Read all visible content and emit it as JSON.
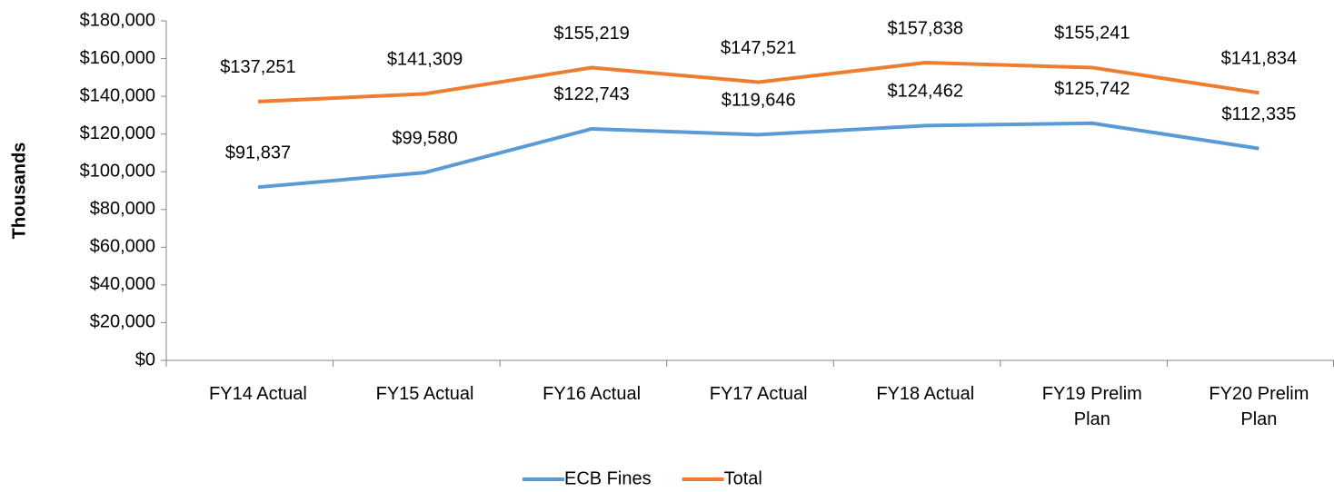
{
  "chart_data": {
    "type": "line",
    "y_label": "Thousands",
    "categories": [
      "FY14 Actual",
      "FY15 Actual",
      "FY16 Actual",
      "FY17 Actual",
      "FY18 Actual",
      "FY19 Prelim Plan",
      "FY20 Prelim Plan"
    ],
    "series": [
      {
        "name": "ECB Fines",
        "color": "#5b9bd5",
        "values": [
          91837,
          99580,
          122743,
          119646,
          124462,
          125742,
          112335
        ],
        "value_labels": [
          "$91,837",
          "$99,580",
          "$122,743",
          "$119,646",
          "$124,462",
          "$125,742",
          "$112,335"
        ]
      },
      {
        "name": "Total",
        "color": "#ed7d31",
        "values": [
          137251,
          141309,
          155219,
          147521,
          157838,
          155241,
          141834
        ],
        "value_labels": [
          "$137,251",
          "$141,309",
          "$155,219",
          "$147,521",
          "$157,838",
          "$155,241",
          "$141,834"
        ]
      }
    ],
    "ylim": [
      0,
      180000
    ],
    "yticks": [
      {
        "value": 0,
        "label": "$0"
      },
      {
        "value": 20000,
        "label": "$20,000"
      },
      {
        "value": 40000,
        "label": "$40,000"
      },
      {
        "value": 60000,
        "label": "$60,000"
      },
      {
        "value": 80000,
        "label": "$80,000"
      },
      {
        "value": 100000,
        "label": "$100,000"
      },
      {
        "value": 120000,
        "label": "$120,000"
      },
      {
        "value": 140000,
        "label": "$140,000"
      },
      {
        "value": 160000,
        "label": "$160,000"
      },
      {
        "value": 180000,
        "label": "$180,000"
      }
    ],
    "grid": false,
    "legend": "bottom"
  }
}
